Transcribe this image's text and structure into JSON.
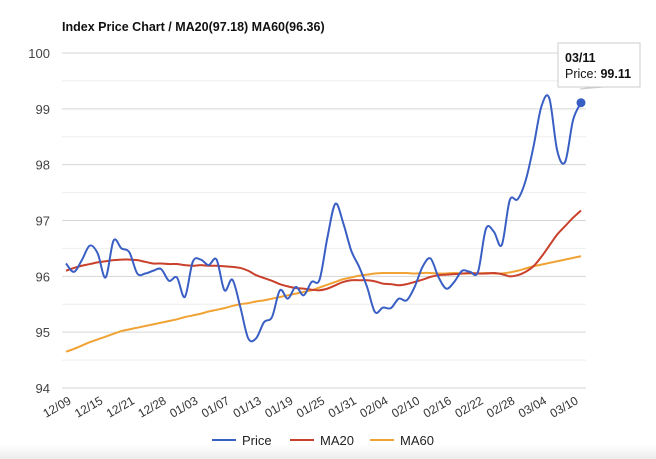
{
  "chart_data": {
    "type": "line",
    "title": "Index Price Chart / MA20(97.18) MA60(96.36)",
    "xlabel": "",
    "ylabel": "",
    "ylim": [
      94,
      100
    ],
    "yticks": [
      94,
      95,
      96,
      97,
      98,
      99,
      100
    ],
    "xtick_labels": [
      "12/09",
      "12/15",
      "12/21",
      "12/28",
      "01/03",
      "01/07",
      "01/13",
      "01/19",
      "01/25",
      "01/31",
      "02/04",
      "02/10",
      "02/16",
      "02/22",
      "02/28",
      "03/04",
      "03/10"
    ],
    "grid": true,
    "legend": "bottom",
    "series": [
      {
        "name": "Price",
        "color": "#3a5fc4",
        "values": [
          96.23,
          96.08,
          96.29,
          96.55,
          96.41,
          95.98,
          96.64,
          96.5,
          96.43,
          96.05,
          96.05,
          96.1,
          96.13,
          95.92,
          95.98,
          95.63,
          96.26,
          96.3,
          96.2,
          96.3,
          95.75,
          95.94,
          95.45,
          94.89,
          94.89,
          95.18,
          95.27,
          95.75,
          95.6,
          95.81,
          95.66,
          95.9,
          95.94,
          96.7,
          97.3,
          96.95,
          96.46,
          96.17,
          95.81,
          95.36,
          95.44,
          95.43,
          95.6,
          95.57,
          95.81,
          96.17,
          96.32,
          95.99,
          95.78,
          95.9,
          96.1,
          96.08,
          96.08,
          96.85,
          96.8,
          96.56,
          97.36,
          97.38,
          97.71,
          98.32,
          99.04,
          99.19,
          98.25,
          98.05,
          98.8,
          99.11
        ]
      },
      {
        "name": "MA20",
        "color": "#c9402b",
        "values": [
          96.1,
          96.15,
          96.19,
          96.22,
          96.25,
          96.27,
          96.29,
          96.3,
          96.3,
          96.29,
          96.26,
          96.23,
          96.23,
          96.22,
          96.22,
          96.2,
          96.19,
          96.2,
          96.19,
          96.19,
          96.18,
          96.17,
          96.15,
          96.1,
          96.02,
          95.97,
          95.92,
          95.86,
          95.82,
          95.79,
          95.78,
          95.76,
          95.75,
          95.78,
          95.84,
          95.9,
          95.93,
          95.93,
          95.93,
          95.91,
          95.87,
          95.86,
          95.84,
          95.86,
          95.9,
          95.94,
          95.99,
          96.02,
          96.03,
          96.04,
          96.05,
          96.06,
          96.05,
          96.05,
          96.06,
          96.04,
          96.0,
          96.02,
          96.08,
          96.18,
          96.35,
          96.55,
          96.75,
          96.9,
          97.05,
          97.18
        ]
      },
      {
        "name": "MA60",
        "color": "#f0a334",
        "values": [
          94.65,
          94.7,
          94.76,
          94.82,
          94.87,
          94.92,
          94.97,
          95.02,
          95.05,
          95.08,
          95.11,
          95.14,
          95.17,
          95.2,
          95.23,
          95.27,
          95.3,
          95.33,
          95.37,
          95.4,
          95.43,
          95.47,
          95.5,
          95.52,
          95.55,
          95.57,
          95.6,
          95.63,
          95.66,
          95.69,
          95.72,
          95.75,
          95.8,
          95.85,
          95.9,
          95.95,
          95.98,
          96.01,
          96.03,
          96.05,
          96.06,
          96.06,
          96.06,
          96.06,
          96.05,
          96.06,
          96.06,
          96.05,
          96.05,
          96.06,
          96.05,
          96.05,
          96.05,
          96.06,
          96.05,
          96.05,
          96.07,
          96.1,
          96.14,
          96.18,
          96.21,
          96.24,
          96.27,
          96.3,
          96.33,
          96.36
        ]
      }
    ],
    "tooltip": {
      "date": "03/11",
      "label": "Price:",
      "value": "99.11"
    }
  }
}
